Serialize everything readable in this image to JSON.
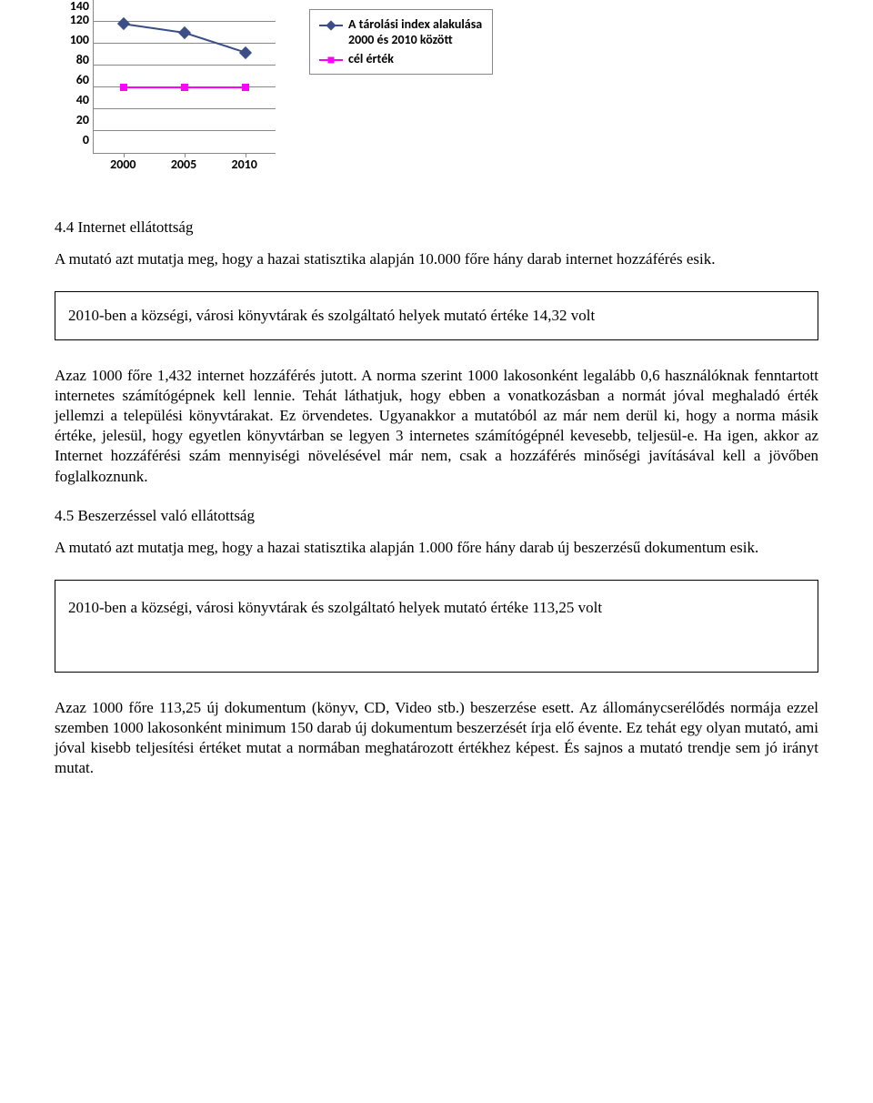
{
  "chart": {
    "type": "line",
    "categories": [
      "2000",
      "2005",
      "2010"
    ],
    "series": [
      {
        "name": "A tárolási index alakulása 2000 és 2010 között",
        "values": [
          118,
          110,
          92
        ],
        "color": "#3b4e87",
        "marker": "diamond"
      },
      {
        "name": "cél érték",
        "values": [
          60,
          60,
          60
        ],
        "color": "#ff00ff",
        "marker": "square"
      }
    ],
    "ylim": [
      0,
      140
    ],
    "ytick_step": 20,
    "yticks": [
      "140",
      "120",
      "100",
      "80",
      "60",
      "40",
      "20",
      "0"
    ],
    "line_width": 2,
    "axis_color": "#888888",
    "background_color": "#ffffff",
    "label_fontsize": 14
  },
  "section44_heading": "4.4 Internet ellátottság",
  "section44_intro": "A mutató azt mutatja meg, hogy a hazai statisztika alapján 10.000 főre hány darab internet hozzáférés esik.",
  "callout1": "2010-ben a községi, városi könyvtárak és szolgáltató helyek mutató értéke 14,32 volt",
  "section44_body": "Azaz 1000 főre 1,432 internet hozzáférés jutott. A norma szerint 1000 lakosonként legalább 0,6 használóknak fenntartott internetes számítógépnek kell lennie. Tehát láthatjuk, hogy ebben a vonatkozásban a normát jóval meghaladó érték jellemzi a települési könyvtárakat. Ez örvendetes. Ugyanakkor a mutatóból az már nem derül ki, hogy a norma másik értéke, jelesül, hogy egyetlen könyvtárban se legyen 3 internetes számítógépnél kevesebb, teljesül-e. Ha igen, akkor az Internet hozzáférési szám mennyiségi növelésével már nem, csak a hozzáférés minőségi javításával kell a jövőben foglalkoznunk.",
  "section45_heading": "4.5 Beszerzéssel való ellátottság",
  "section45_intro": "A mutató azt mutatja meg, hogy a hazai statisztika alapján 1.000 főre hány darab új beszerzésű dokumentum esik.",
  "callout2": "2010-ben a községi, városi könyvtárak és szolgáltató helyek mutató értéke 113,25 volt",
  "section45_body": "Azaz 1000 főre 113,25 új dokumentum (könyv, CD, Video stb.) beszerzése esett. Az állománycserélődés normája ezzel szemben 1000 lakosonként minimum 150 darab új dokumentum beszerzését írja elő évente. Ez tehát egy olyan mutató, ami jóval kisebb teljesítési értéket mutat a normában meghatározott értékhez képest. És sajnos a mutató trendje sem jó irányt mutat."
}
